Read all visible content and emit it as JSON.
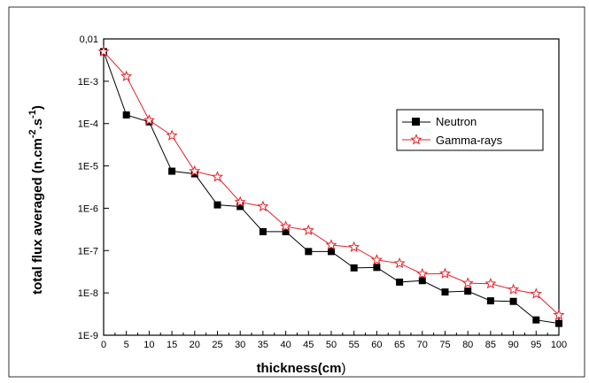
{
  "chart_data": {
    "type": "line",
    "title": "",
    "xlabel_main": "thickness(cm",
    "xlabel_close": ")",
    "ylabel_main": "total flux averaged (n.cm",
    "ylabel_sup1": "-2",
    "ylabel_mid": ".s",
    "ylabel_sup2": "-1",
    "ylabel_close": ")",
    "yscale": "log",
    "xlim": [
      0,
      100
    ],
    "ylim": [
      1e-09,
      0.01
    ],
    "x_ticks": [
      "0",
      "5",
      "10",
      "15",
      "20",
      "25",
      "30",
      "35",
      "40",
      "45",
      "50",
      "55",
      "60",
      "65",
      "70",
      "75",
      "80",
      "85",
      "90",
      "95",
      "100"
    ],
    "y_ticks": [
      "1E-9",
      "1E-8",
      "1E-7",
      "1E-6",
      "1E-5",
      "1E-4",
      "1E-3",
      "0,01"
    ],
    "grid": false,
    "legend_position": "top-right",
    "x": [
      0,
      5,
      10,
      15,
      20,
      25,
      30,
      35,
      40,
      45,
      50,
      55,
      60,
      65,
      70,
      75,
      80,
      85,
      90,
      95,
      100
    ],
    "series": [
      {
        "name": "Neutron",
        "color": "#000000",
        "marker": "filled-square",
        "values": [
          0.005,
          0.00016,
          0.00011,
          7.5e-06,
          6.5e-06,
          1.2e-06,
          1.1e-06,
          2.8e-07,
          2.8e-07,
          9.5e-08,
          9.5e-08,
          3.9e-08,
          4e-08,
          1.8e-08,
          1.95e-08,
          1.05e-08,
          1.1e-08,
          6.5e-09,
          6.3e-09,
          2.3e-09,
          1.9e-09
        ]
      },
      {
        "name": "Gamma-rays",
        "color": "#e8202a",
        "marker": "open-star",
        "values": [
          0.005,
          0.0013,
          0.00012,
          5.2e-05,
          7.5e-06,
          5.5e-06,
          1.4e-06,
          1.1e-06,
          3.7e-07,
          3e-07,
          1.35e-07,
          1.2e-07,
          6e-08,
          5e-08,
          2.8e-08,
          2.85e-08,
          1.7e-08,
          1.65e-08,
          1.2e-08,
          9.5e-09,
          3e-09
        ]
      }
    ]
  }
}
